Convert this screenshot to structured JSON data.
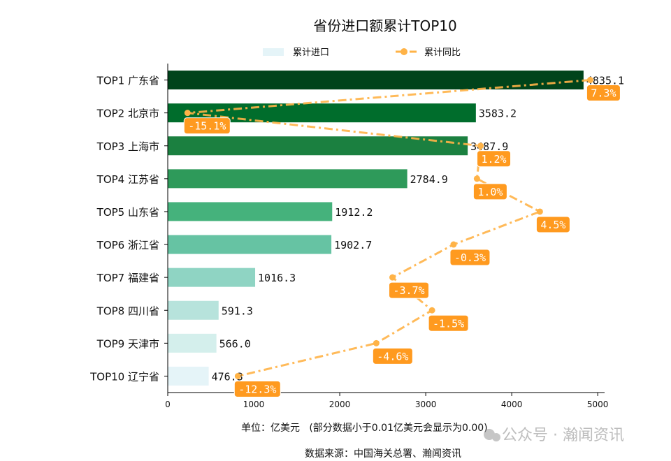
{
  "chart_data": {
    "type": "bar",
    "orientation": "horizontal",
    "title": "省份进口额累计TOP10",
    "categories": [
      "TOP1 广东省",
      "TOP2 北京市",
      "TOP3 上海市",
      "TOP4 江苏省",
      "TOP5 山东省",
      "TOP6 浙江省",
      "TOP7 福建省",
      "TOP8 四川省",
      "TOP9 天津市",
      "TOP10 辽宁省"
    ],
    "series": [
      {
        "name": "累计进口",
        "type": "bar",
        "values": [
          4835.1,
          3583.2,
          3487.9,
          2784.9,
          1912.2,
          1902.7,
          1016.3,
          591.3,
          566.0,
          476.3
        ],
        "labels": [
          "4835.1",
          "3583.2",
          "3487.9",
          "2784.9",
          "1912.2",
          "1902.7",
          "1016.3",
          "591.3",
          "566.0",
          "476.3"
        ],
        "colors": [
          "#00441b",
          "#006d2c",
          "#1b8040",
          "#2e9a5a",
          "#45b27c",
          "#66c3a3",
          "#8fd4c3",
          "#b7e3dc",
          "#d4efec",
          "#e5f4f8"
        ]
      },
      {
        "name": "累计同比",
        "type": "line",
        "values": [
          7.3,
          -15.1,
          1.2,
          1.0,
          4.5,
          -0.3,
          -3.7,
          -1.5,
          -4.6,
          -12.3
        ],
        "labels": [
          "7.3%",
          "-15.1%",
          "1.2%",
          "1.0%",
          "4.5%",
          "-0.3%",
          "-3.7%",
          "-1.5%",
          "-4.6%",
          "-12.3%"
        ],
        "color": "#ffb347",
        "label_bg": "#ff9a1f",
        "secondary_axis_range": [
          -16.2,
          8.1
        ]
      }
    ],
    "xlim": [
      0,
      5080
    ],
    "xticks": [
      "0",
      "1000",
      "2000",
      "3000",
      "4000",
      "5000"
    ],
    "xlabel": "单位：亿美元   (部分数据小于0.01亿美元会显示为0.00)",
    "source": "数据来源：中国海关总署、瀚闻资讯",
    "legend_placement": "top-center",
    "grid": false
  },
  "watermark": "公众号 · 瀚闻资讯"
}
